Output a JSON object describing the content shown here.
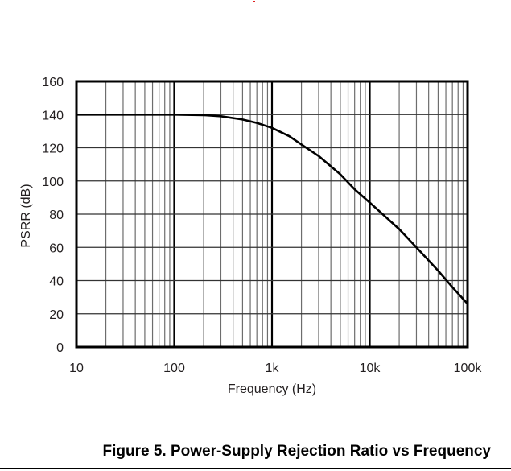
{
  "figure": {
    "caption": "Figure 5. Power-Supply Rejection Ratio vs Frequency"
  },
  "chart_data": {
    "type": "line",
    "title": "Power-Supply Rejection Ratio vs Frequency",
    "xlabel": "Frequency (Hz)",
    "ylabel": "PSRR (dB)",
    "xscale": "log",
    "xlim": [
      10,
      100000
    ],
    "ylim": [
      0,
      160
    ],
    "grid": true,
    "x_ticks": [
      10,
      100,
      1000,
      10000,
      100000
    ],
    "x_tick_labels": [
      "10",
      "100",
      "1k",
      "10k",
      "100k"
    ],
    "y_ticks": [
      0,
      20,
      40,
      60,
      80,
      100,
      120,
      140,
      160
    ],
    "y_tick_labels": [
      "0",
      "20",
      "40",
      "60",
      "80",
      "100",
      "120",
      "140",
      "160"
    ],
    "legend": null,
    "series": [
      {
        "name": "PSRR",
        "x": [
          10,
          30,
          100,
          200,
          300,
          500,
          700,
          1000,
          1500,
          2000,
          3000,
          5000,
          7000,
          10000,
          20000,
          30000,
          50000,
          70000,
          100000
        ],
        "y": [
          140,
          140,
          140,
          139.7,
          139,
          137,
          135,
          132,
          127,
          122,
          115,
          104,
          95,
          87,
          71,
          60,
          46,
          36,
          26
        ]
      }
    ]
  }
}
